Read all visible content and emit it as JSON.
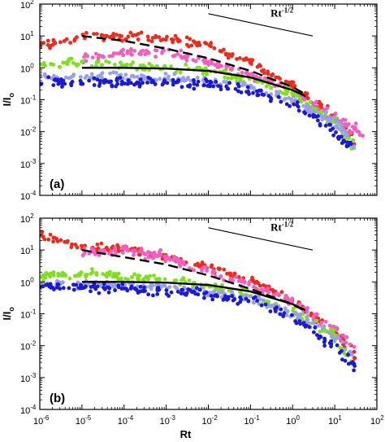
{
  "chart_data": [
    {
      "type": "scatter",
      "panel_label": "(a)",
      "ylabel": "I/I",
      "ylabel_sub": "o",
      "xlabel": "",
      "x_scale": "log",
      "y_scale": "log",
      "xlim": [
        1e-06,
        100
      ],
      "ylim": [
        0.0001,
        100
      ],
      "x_tick_labels": [
        "",
        "",
        "",
        "",
        "",
        "",
        "",
        "",
        ""
      ],
      "y_tick_labels": [
        "10",
        "10",
        "10",
        "10",
        "10",
        "10",
        "10"
      ],
      "y_tick_exponents": [
        "2",
        "1",
        "0",
        "-1",
        "-2",
        "-3",
        "-4"
      ],
      "slope_annotation": "Rt",
      "slope_annotation_sup": "-1/2",
      "slope_line": {
        "x": [
          0.01,
          3
        ],
        "y": [
          50,
          10
        ]
      },
      "colors": {
        "red": "#ee2a1b",
        "magenta": "#f060c0",
        "green": "#80e020",
        "lightblue": "#9aa0e8",
        "blue": "#1a1ad0",
        "curve": "#000000"
      },
      "series": [
        {
          "color": "red",
          "x": [
            1e-06,
            1e-05,
            0.0001,
            0.001,
            0.01,
            0.1,
            1,
            10,
            30
          ],
          "y": [
            5,
            9,
            10,
            8,
            5,
            1.5,
            0.3,
            0.03,
            0.005
          ]
        },
        {
          "color": "magenta",
          "x": [
            1e-05,
            0.0001,
            0.001,
            0.01,
            0.1,
            1,
            10,
            50
          ],
          "y": [
            2,
            3,
            3,
            1.5,
            0.6,
            0.2,
            0.03,
            0.007
          ]
        },
        {
          "color": "green",
          "x": [
            1e-06,
            1e-05,
            0.0001,
            0.001,
            0.01,
            0.1,
            1,
            10,
            30
          ],
          "y": [
            1.2,
            1.5,
            1.2,
            1,
            0.8,
            0.4,
            0.15,
            0.02,
            0.003
          ]
        },
        {
          "color": "lightblue",
          "x": [
            1e-06,
            1e-05,
            0.0001,
            0.001,
            0.01,
            0.1,
            1,
            10,
            30
          ],
          "y": [
            0.5,
            0.5,
            0.5,
            0.45,
            0.4,
            0.25,
            0.1,
            0.02,
            0.004
          ]
        },
        {
          "color": "blue",
          "x": [
            1e-06,
            1e-05,
            0.0001,
            0.001,
            0.01,
            0.1,
            1,
            10,
            30
          ],
          "y": [
            0.35,
            0.35,
            0.35,
            0.35,
            0.3,
            0.2,
            0.08,
            0.01,
            0.002
          ]
        }
      ],
      "fit_curves": [
        {
          "style": "dashed",
          "x": [
            1e-05,
            0.0001,
            0.001,
            0.01,
            0.1,
            1,
            2
          ],
          "y": [
            10,
            7,
            4,
            2,
            0.8,
            0.25,
            0.15
          ]
        },
        {
          "style": "solid",
          "x": [
            1e-05,
            0.0001,
            0.001,
            0.01,
            0.1,
            1,
            2
          ],
          "y": [
            1,
            1,
            0.95,
            0.8,
            0.5,
            0.2,
            0.13
          ]
        }
      ]
    },
    {
      "type": "scatter",
      "panel_label": "(b)",
      "ylabel": "I/I",
      "ylabel_sub": "o",
      "xlabel": "Rt",
      "x_scale": "log",
      "y_scale": "log",
      "xlim": [
        1e-06,
        100
      ],
      "ylim": [
        0.0001,
        100
      ],
      "x_tick_labels": [
        "10",
        "10",
        "10",
        "10",
        "10",
        "10",
        "10",
        "10",
        "10"
      ],
      "x_tick_exponents": [
        "-6",
        "-5",
        "-4",
        "-3",
        "-2",
        "-1",
        "0",
        "1",
        "2"
      ],
      "y_tick_labels": [
        "10",
        "10",
        "10",
        "10",
        "10",
        "10",
        "10"
      ],
      "y_tick_exponents": [
        "2",
        "1",
        "0",
        "-1",
        "-2",
        "-3",
        "-4"
      ],
      "slope_annotation": "Rt",
      "slope_annotation_sup": "-1/2",
      "slope_line": {
        "x": [
          0.01,
          3
        ],
        "y": [
          50,
          10
        ]
      },
      "colors": {
        "red": "#ee2a1b",
        "magenta": "#f060c0",
        "green": "#80e020",
        "lightblue": "#9aa0e8",
        "blue": "#1a1ad0",
        "curve": "#000000"
      },
      "series": [
        {
          "color": "red",
          "x": [
            1e-06,
            1e-05,
            0.0001,
            0.001,
            0.01,
            0.1,
            1,
            10,
            30
          ],
          "y": [
            30,
            12,
            12,
            6,
            3,
            1.2,
            0.25,
            0.03,
            0.005
          ]
        },
        {
          "color": "magenta",
          "x": [
            1e-05,
            0.0001,
            0.001,
            0.01,
            0.1,
            1,
            10,
            30
          ],
          "y": [
            8,
            10,
            6,
            2,
            0.8,
            0.25,
            0.03,
            0.008
          ]
        },
        {
          "color": "green",
          "x": [
            1e-06,
            1e-05,
            0.0001,
            0.001,
            0.01,
            0.1,
            1,
            10,
            30
          ],
          "y": [
            1.5,
            1.8,
            1.5,
            1.2,
            0.8,
            0.4,
            0.12,
            0.02,
            0.002
          ]
        },
        {
          "color": "lightblue",
          "x": [
            1e-06,
            1e-05,
            0.0001,
            0.001,
            0.01,
            0.1,
            1,
            10,
            30
          ],
          "y": [
            0.8,
            0.8,
            0.8,
            0.7,
            0.5,
            0.3,
            0.1,
            0.02,
            0.004
          ]
        },
        {
          "color": "blue",
          "x": [
            1e-06,
            1e-05,
            0.0001,
            0.001,
            0.01,
            0.1,
            1,
            10,
            30
          ],
          "y": [
            0.7,
            0.7,
            0.6,
            0.5,
            0.4,
            0.25,
            0.08,
            0.01,
            0.002
          ]
        }
      ],
      "fit_curves": [
        {
          "style": "dashed",
          "x": [
            1e-05,
            0.0001,
            0.001,
            0.01,
            0.1,
            1,
            2
          ],
          "y": [
            10,
            6,
            3.5,
            1.6,
            0.6,
            0.2,
            0.12
          ]
        },
        {
          "style": "solid",
          "x": [
            1e-05,
            0.0001,
            0.001,
            0.01,
            0.1,
            1,
            2
          ],
          "y": [
            1,
            1,
            0.95,
            0.8,
            0.5,
            0.2,
            0.13
          ]
        }
      ]
    }
  ]
}
